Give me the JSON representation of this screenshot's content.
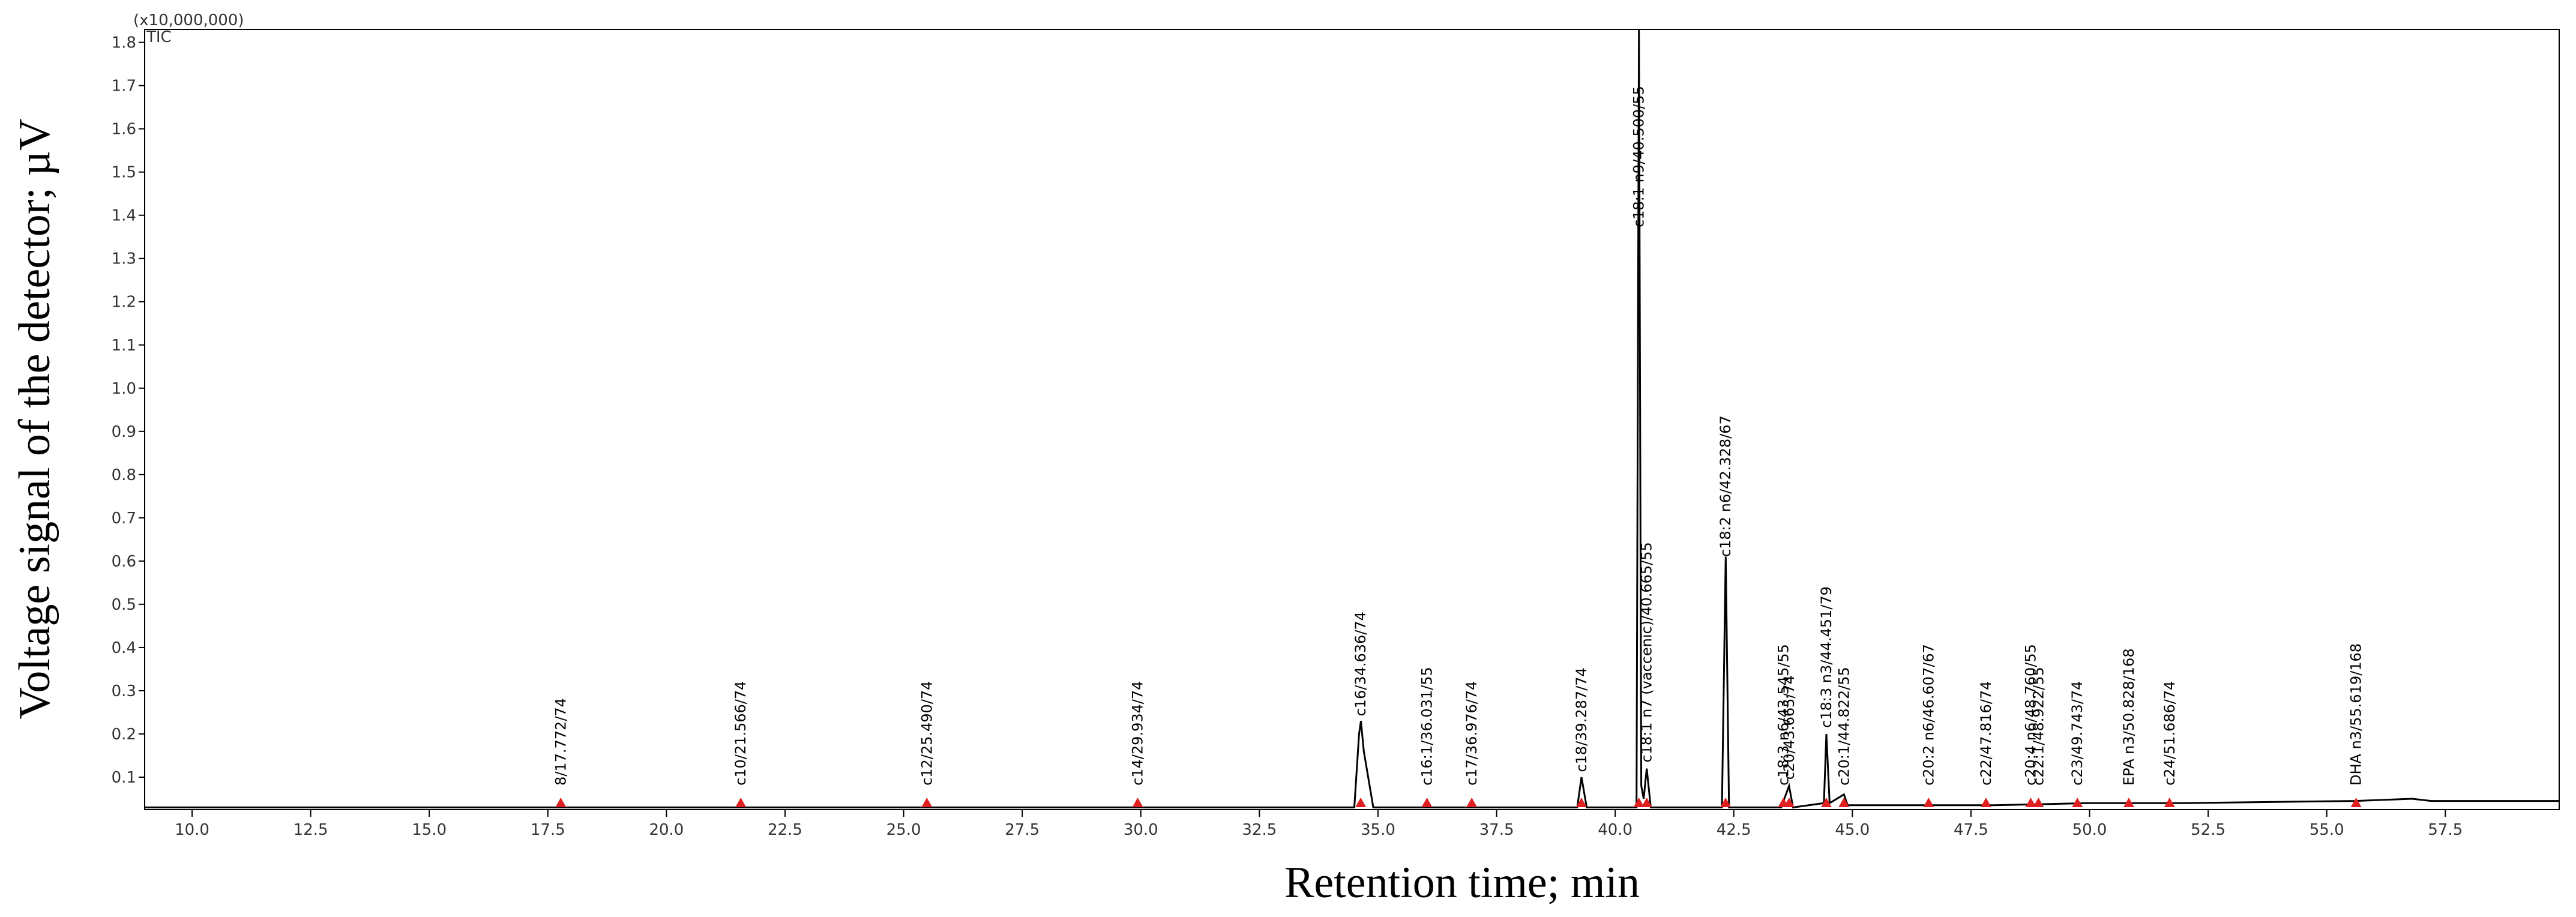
{
  "chart_data": {
    "type": "line",
    "y_label": "Voltage signal of the detector; µV",
    "x_label": "Retention time; min",
    "y_multiplier": "(x10,000,000)",
    "trace_name": "TIC",
    "color": "#000000",
    "x": [
      9,
      17.7,
      17.8,
      21.5,
      25.4,
      29.9,
      34.5,
      34.6,
      34.64,
      34.7,
      34.9,
      36.0,
      37.0,
      39.2,
      39.29,
      39.4,
      40.45,
      40.5,
      40.55,
      40.6,
      40.665,
      40.75,
      42.25,
      42.33,
      42.4,
      43.5,
      43.665,
      43.75,
      44.4,
      44.451,
      44.52,
      44.822,
      44.9,
      46.6,
      48.0,
      50.0,
      52.0,
      55.6,
      56.8,
      57.2,
      59.9
    ],
    "values": [
      0.03,
      0.03,
      0.03,
      0.03,
      0.03,
      0.03,
      0.03,
      0.2,
      0.23,
      0.16,
      0.03,
      0.03,
      0.03,
      0.03,
      0.1,
      0.03,
      0.03,
      1.83,
      0.08,
      0.05,
      0.12,
      0.03,
      0.03,
      0.61,
      0.03,
      0.03,
      0.08,
      0.03,
      0.04,
      0.2,
      0.04,
      0.06,
      0.035,
      0.035,
      0.035,
      0.04,
      0.04,
      0.045,
      0.05,
      0.045,
      0.045
    ],
    "xlim": [
      9,
      59.9
    ],
    "ylim": [
      0.025,
      1.83
    ],
    "xticks": [
      {
        "value": 10,
        "label": "10.0"
      },
      12.5,
      {
        "value": 15,
        "label": "15.0"
      },
      17.5,
      {
        "value": 20,
        "label": "20.0"
      },
      22.5,
      {
        "value": 25,
        "label": "25.0"
      },
      27.5,
      {
        "value": 30,
        "label": "30.0"
      },
      32.5,
      {
        "value": 35,
        "label": "35.0"
      },
      37.5,
      {
        "value": 40,
        "label": "40.0"
      },
      42.5,
      {
        "value": 45,
        "label": "45.0"
      },
      47.5,
      {
        "value": 50,
        "label": "50.0"
      },
      52.5,
      {
        "value": 55,
        "label": "55.0"
      },
      57.5
    ],
    "yticks": [
      0.1,
      0.2,
      0.3,
      0.4,
      0.5,
      0.6,
      0.7,
      0.8,
      0.9,
      {
        "value": 1,
        "label": "1.0"
      },
      1.1,
      1.2,
      1.3,
      1.4,
      1.5,
      1.6,
      1.7,
      1.8
    ],
    "peaks": [
      {
        "label": "8/17.772/74",
        "x": 17.772
      },
      {
        "label": "c10/21.566/74",
        "x": 21.566
      },
      {
        "label": "c12/25.490/74",
        "x": 25.49
      },
      {
        "label": "c14/29.934/74",
        "x": 29.934
      },
      {
        "label": "c16/34.636/74",
        "x": 34.636
      },
      {
        "label": "c16:1/36.031/55",
        "x": 36.031
      },
      {
        "label": "c17/36.976/74",
        "x": 36.976
      },
      {
        "label": "c18/39.287/74",
        "x": 39.287
      },
      {
        "label": "c18:1 n9/40.500/55",
        "x": 40.5
      },
      {
        "label": "c18:1 n7 (vaccenic)/40.665/55",
        "x": 40.665
      },
      {
        "label": "c18:2 n6/42.328/67",
        "x": 42.328
      },
      {
        "label": "c18:3 n6/43.545/55",
        "x": 43.545
      },
      {
        "label": "c20/43.665/74",
        "x": 43.665
      },
      {
        "label": "c18:3 n3/44.451/79",
        "x": 44.451
      },
      {
        "label": "c20:1/44.822/55",
        "x": 44.822
      },
      {
        "label": "c20:2 n6/46.607/67",
        "x": 46.607
      },
      {
        "label": "c22/47.816/74",
        "x": 47.816
      },
      {
        "label": "c20:4 n6/48.760/55",
        "x": 48.76
      },
      {
        "label": "c22:1/48.922/55",
        "x": 48.922
      },
      {
        "label": "c23/49.743/74",
        "x": 49.743
      },
      {
        "label": "EPA n3/50.828/168",
        "x": 50.828
      },
      {
        "label": "c24/51.686/74",
        "x": 51.686
      },
      {
        "label": "DHA n3/55.619/168",
        "x": 55.619
      }
    ]
  }
}
